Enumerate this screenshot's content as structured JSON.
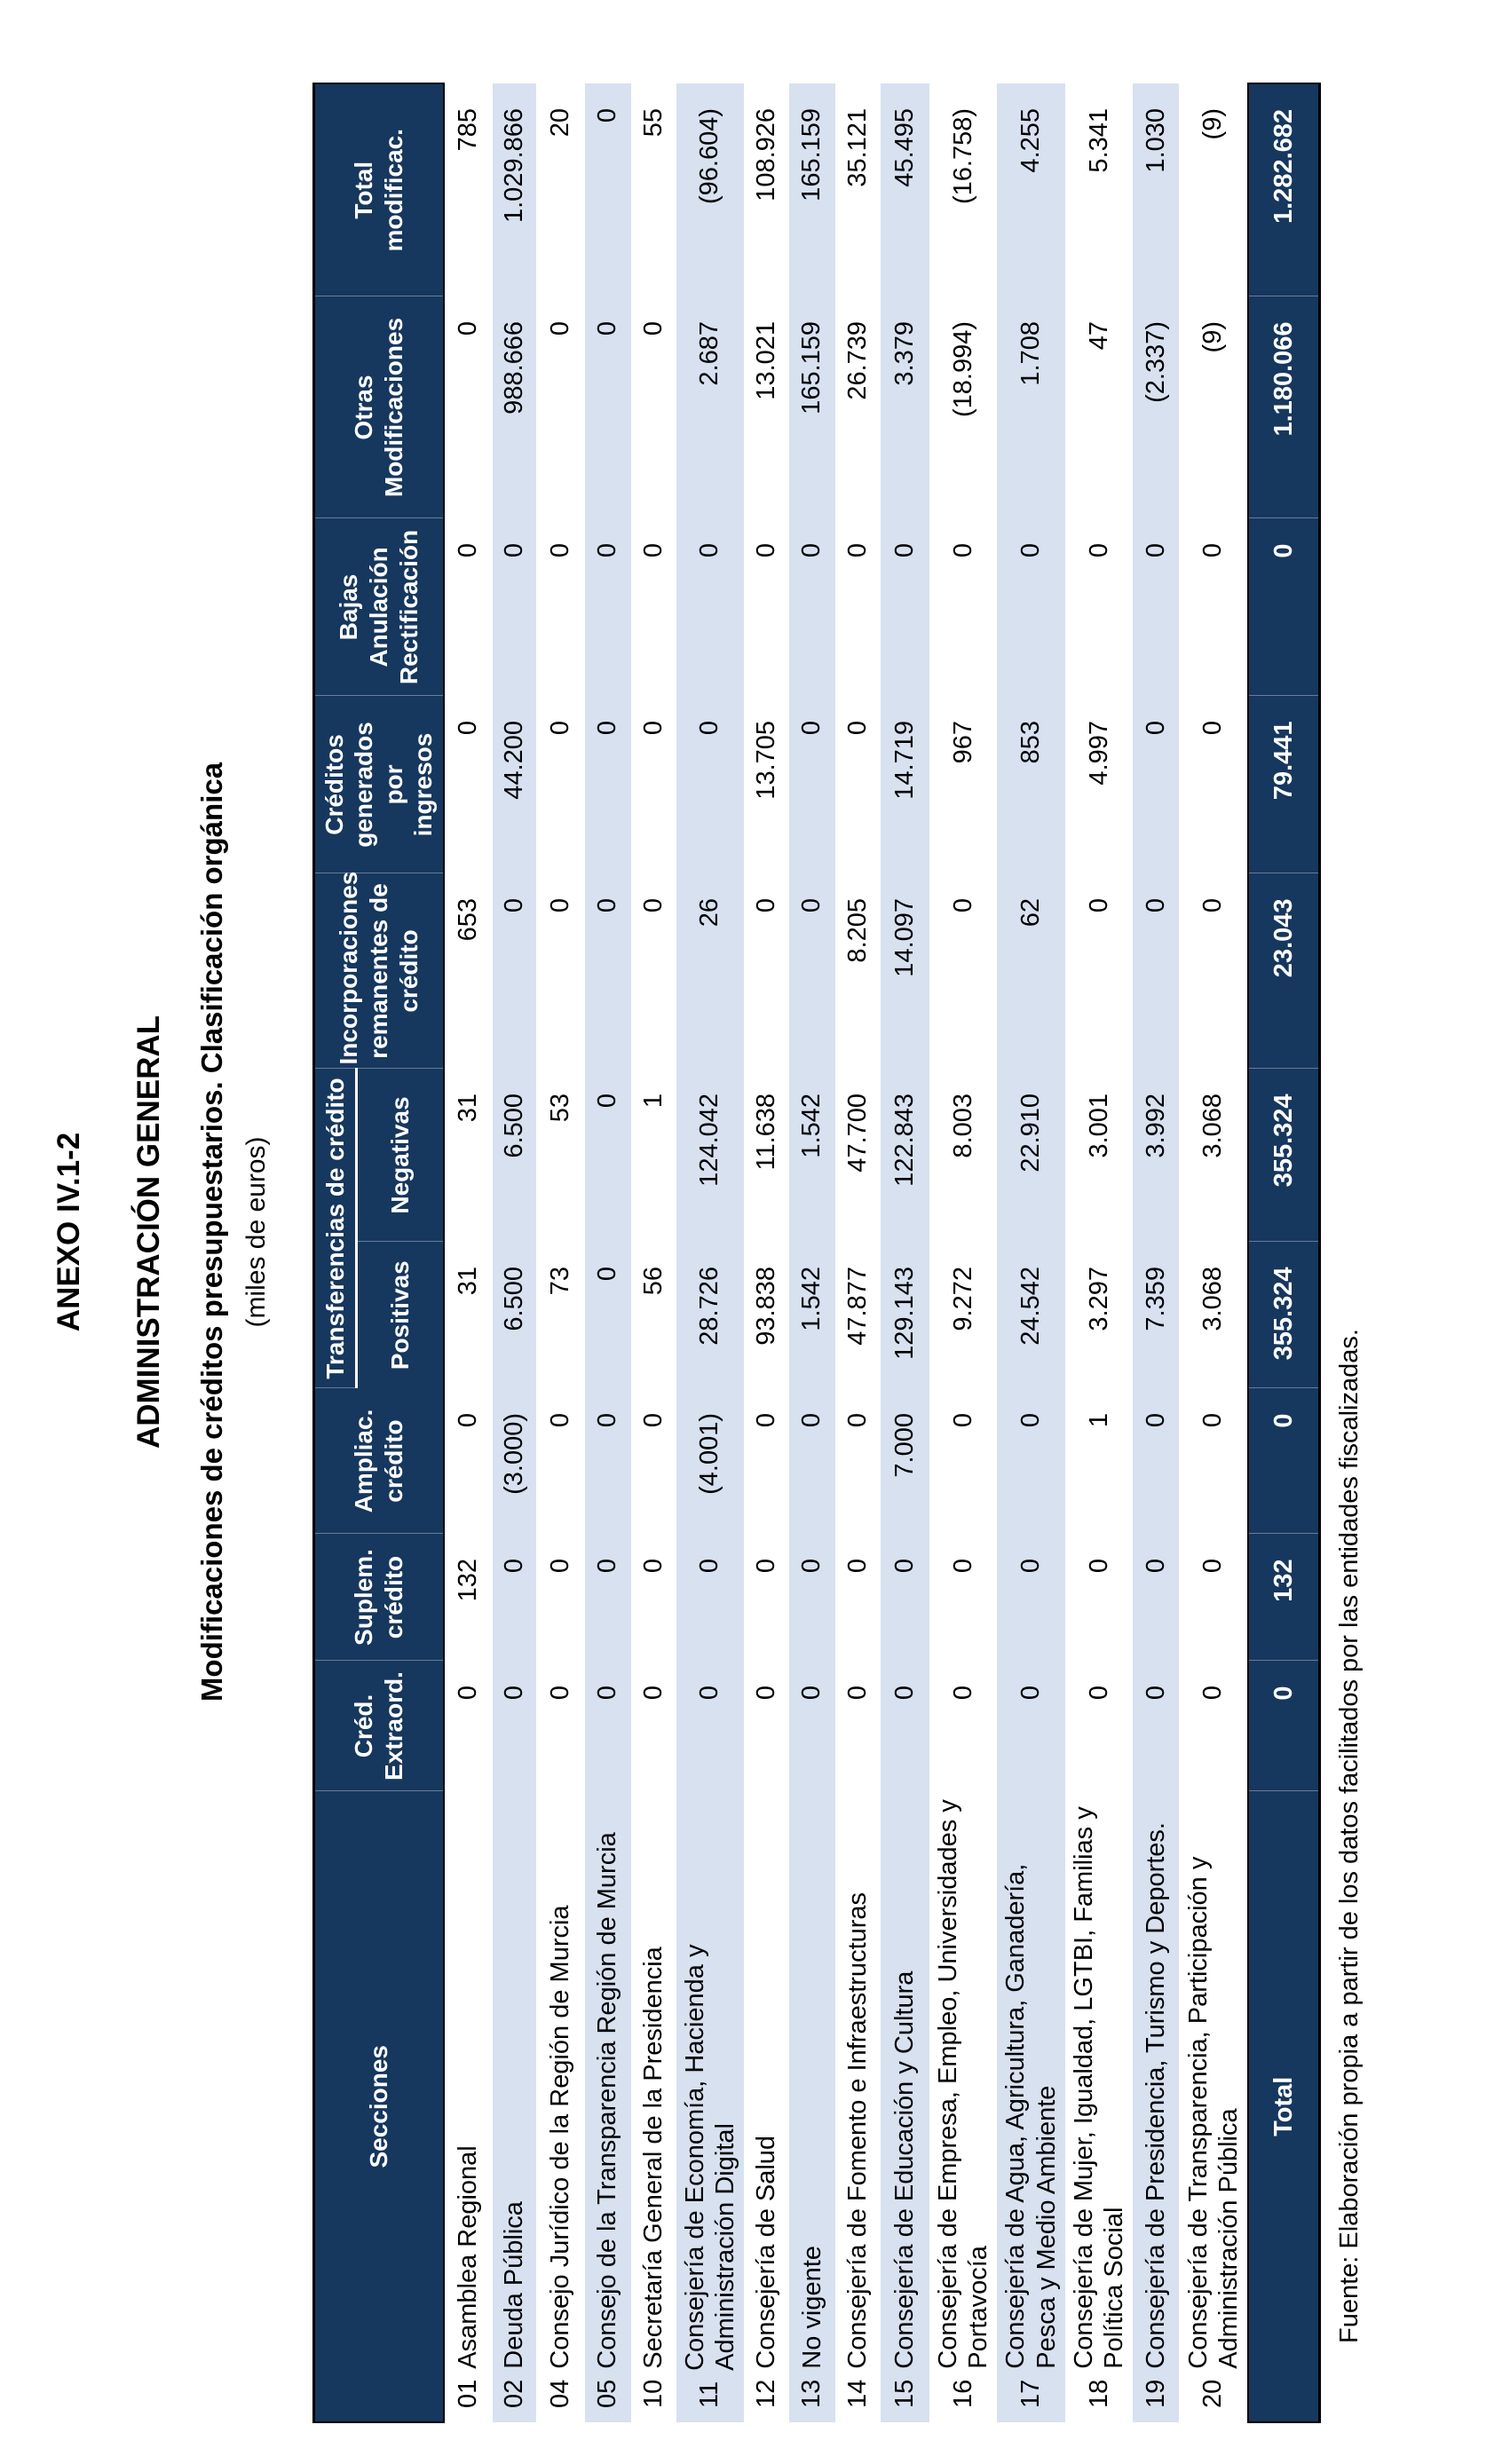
{
  "titles": {
    "line1": "ANEXO IV.1-2",
    "line2": "ADMINISTRACIÓN GENERAL",
    "line3": "Modificaciones de créditos presupuestarios. Clasificación orgánica",
    "line4": "(miles de euros)"
  },
  "table": {
    "headers": {
      "secciones": "Secciones",
      "cred_extraord": "Créd.\nExtraord.",
      "suplem": "Suplem.\ncrédito",
      "ampliac": "Ampliac.\ncrédito",
      "transferencias": "Transferencias de crédito",
      "positivas": "Positivas",
      "negativas": "Negativas",
      "incorporaciones": "Incorporaciones\nremanentes de\ncrédito",
      "creditos_generados": "Créditos\ngenerados por\ningresos",
      "bajas": "Bajas\nAnulación\nRectificación",
      "otras": "Otras\nModificaciones",
      "total": "Total\nmodificac."
    },
    "rows": [
      {
        "num": "01",
        "name": "Asamblea Regional",
        "values": [
          "0",
          "132",
          "0",
          "31",
          "31",
          "653",
          "0",
          "0",
          "0",
          "785"
        ]
      },
      {
        "num": "02",
        "name": "Deuda Pública",
        "values": [
          "0",
          "0",
          "(3.000)",
          "6.500",
          "6.500",
          "0",
          "44.200",
          "0",
          "988.666",
          "1.029.866"
        ]
      },
      {
        "num": "04",
        "name": "Consejo Jurídico de la Región de Murcia",
        "values": [
          "0",
          "0",
          "0",
          "73",
          "53",
          "0",
          "0",
          "0",
          "0",
          "20"
        ]
      },
      {
        "num": "05",
        "name": "Consejo de la Transparencia Región de Murcia",
        "values": [
          "0",
          "0",
          "0",
          "0",
          "0",
          "0",
          "0",
          "0",
          "0",
          "0"
        ]
      },
      {
        "num": "10",
        "name": "Secretaría General de la Presidencia",
        "values": [
          "0",
          "0",
          "0",
          "56",
          "1",
          "0",
          "0",
          "0",
          "0",
          "55"
        ]
      },
      {
        "num": "11",
        "name": "Consejería de Economía, Hacienda y\nAdministración Digital",
        "values": [
          "0",
          "0",
          "(4.001)",
          "28.726",
          "124.042",
          "26",
          "0",
          "0",
          "2.687",
          "(96.604)"
        ]
      },
      {
        "num": "12",
        "name": "Consejería de Salud",
        "values": [
          "0",
          "0",
          "0",
          "93.838",
          "11.638",
          "0",
          "13.705",
          "0",
          "13.021",
          "108.926"
        ]
      },
      {
        "num": "13",
        "name": "No vigente",
        "values": [
          "0",
          "0",
          "0",
          "1.542",
          "1.542",
          "0",
          "0",
          "0",
          "165.159",
          "165.159"
        ]
      },
      {
        "num": "14",
        "name": "Consejería de Fomento e Infraestructuras",
        "values": [
          "0",
          "0",
          "0",
          "47.877",
          "47.700",
          "8.205",
          "0",
          "0",
          "26.739",
          "35.121"
        ]
      },
      {
        "num": "15",
        "name": "Consejería de Educación y Cultura",
        "values": [
          "0",
          "0",
          "7.000",
          "129.143",
          "122.843",
          "14.097",
          "14.719",
          "0",
          "3.379",
          "45.495"
        ]
      },
      {
        "num": "16",
        "name": "Consejería de Empresa, Empleo, Universidades y\nPortavocía",
        "values": [
          "0",
          "0",
          "0",
          "9.272",
          "8.003",
          "0",
          "967",
          "0",
          "(18.994)",
          "(16.758)"
        ]
      },
      {
        "num": "17",
        "name": "Consejería de Agua, Agricultura, Ganadería,\nPesca y Medio Ambiente",
        "values": [
          "0",
          "0",
          "0",
          "24.542",
          "22.910",
          "62",
          "853",
          "0",
          "1.708",
          "4.255"
        ]
      },
      {
        "num": "18",
        "name": "Consejería de Mujer, Igualdad, LGTBI, Familias y\nPolítica Social",
        "values": [
          "0",
          "0",
          "1",
          "3.297",
          "3.001",
          "0",
          "4.997",
          "0",
          "47",
          "5.341"
        ]
      },
      {
        "num": "19",
        "name": "Consejería de Presidencia, Turismo y Deportes.",
        "values": [
          "0",
          "0",
          "0",
          "7.359",
          "3.992",
          "0",
          "0",
          "0",
          "(2.337)",
          "1.030"
        ]
      },
      {
        "num": "20",
        "name": "Consejería de Transparencia, Participación y\nAdministración Pública",
        "values": [
          "0",
          "0",
          "0",
          "3.068",
          "3.068",
          "0",
          "0",
          "0",
          "(9)",
          "(9)"
        ]
      }
    ],
    "total_row": {
      "label": "Total",
      "values": [
        "0",
        "132",
        "0",
        "355.324",
        "355.324",
        "23.043",
        "79.441",
        "0",
        "1.180.066",
        "1.282.682"
      ]
    }
  },
  "footnote": "Fuente: Elaboración propia a partir de los datos facilitados por las entidades fiscalizadas.",
  "colors": {
    "header_bg": "#16375E",
    "row_alt": "#D8E1F0",
    "header_text": "#FFFFFF",
    "border": "#000000"
  }
}
